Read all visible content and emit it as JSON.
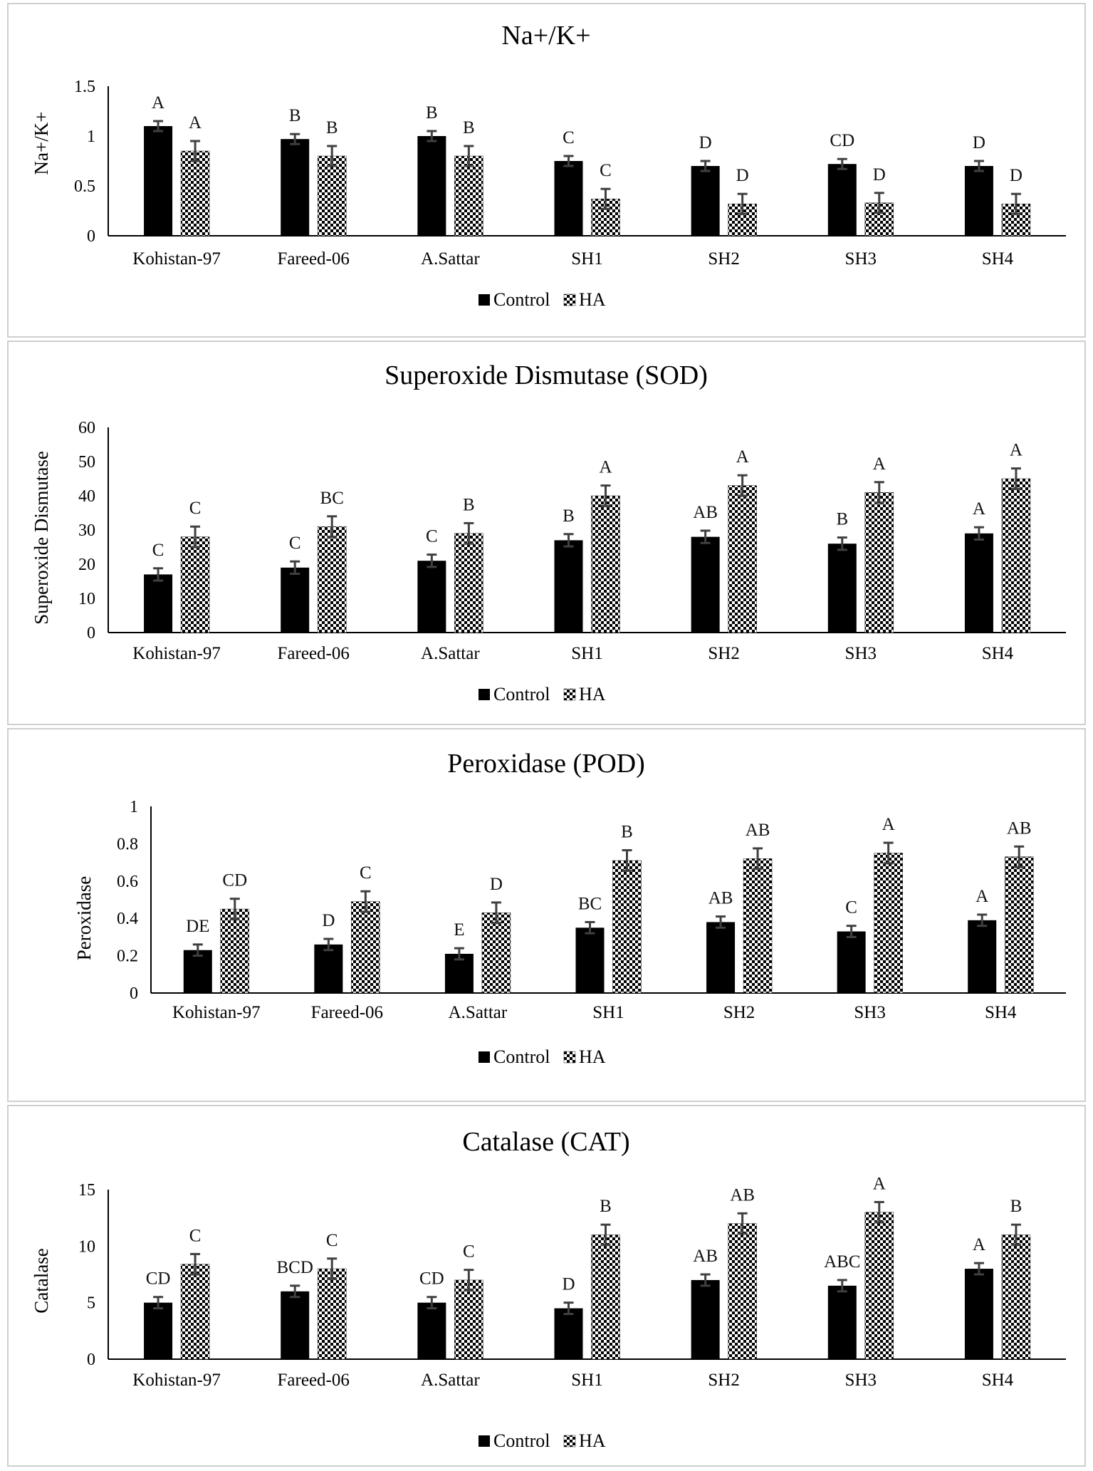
{
  "legend": {
    "control": "Control",
    "ha": "HA"
  },
  "colors": {
    "control": "#000000",
    "ha_dark": "#000000",
    "ha_light": "#ffffff",
    "error": "#404040",
    "axis": "#000000"
  },
  "chart_data": [
    {
      "type": "bar",
      "title": "Na+/K+",
      "ylabel": "Na+/K+",
      "xlabel": "",
      "ylim": [
        0,
        1.5
      ],
      "yticks": [
        "0",
        "0.5",
        "1",
        "1.5"
      ],
      "categories": [
        "Kohistan-97",
        "Fareed-06",
        "A.Sattar",
        "SH1",
        "SH2",
        "SH3",
        "SH4"
      ],
      "series": [
        {
          "name": "Control",
          "values": [
            1.1,
            0.97,
            1.0,
            0.75,
            0.7,
            0.72,
            0.7
          ],
          "errors": [
            0.05,
            0.05,
            0.05,
            0.05,
            0.05,
            0.05,
            0.05
          ],
          "labels": [
            "A",
            "B",
            "B",
            "C",
            "D",
            "CD",
            "D"
          ]
        },
        {
          "name": "HA",
          "values": [
            0.85,
            0.8,
            0.8,
            0.37,
            0.32,
            0.33,
            0.32
          ],
          "errors": [
            0.1,
            0.1,
            0.1,
            0.1,
            0.1,
            0.1,
            0.1
          ],
          "labels": [
            "A",
            "B",
            "B",
            "C",
            "D",
            "D",
            "D"
          ]
        }
      ]
    },
    {
      "type": "bar",
      "title": "Superoxide Dismutase (SOD)",
      "ylabel": "Superoxide Dismutase",
      "xlabel": "",
      "ylim": [
        0,
        60
      ],
      "yticks": [
        "0",
        "10",
        "20",
        "30",
        "40",
        "50",
        "60"
      ],
      "categories": [
        "Kohistan-97",
        "Fareed-06",
        "A.Sattar",
        "SH1",
        "SH2",
        "SH3",
        "SH4"
      ],
      "series": [
        {
          "name": "Control",
          "values": [
            17,
            19,
            21,
            27,
            28,
            26,
            29
          ],
          "errors": [
            1.8,
            1.8,
            1.8,
            1.8,
            1.8,
            1.8,
            1.8
          ],
          "labels": [
            "C",
            "C",
            "C",
            "B",
            "AB",
            "B",
            "A"
          ]
        },
        {
          "name": "HA",
          "values": [
            28,
            31,
            29,
            40,
            43,
            41,
            45
          ],
          "errors": [
            3,
            3,
            3,
            3,
            3,
            3,
            3
          ],
          "labels": [
            "C",
            "BC",
            "B",
            "A",
            "A",
            "A",
            "A"
          ]
        }
      ]
    },
    {
      "type": "bar",
      "title": "Peroxidase (POD)",
      "ylabel": "Peroxidase",
      "xlabel": "",
      "ylim": [
        0,
        1
      ],
      "yticks": [
        "0",
        "0.2",
        "0.4",
        "0.6",
        "0.8",
        "1"
      ],
      "categories": [
        "Kohistan-97",
        "Fareed-06",
        "A.Sattar",
        "SH1",
        "SH2",
        "SH3",
        "SH4"
      ],
      "series": [
        {
          "name": "Control",
          "values": [
            0.23,
            0.26,
            0.21,
            0.35,
            0.38,
            0.33,
            0.39
          ],
          "errors": [
            0.03,
            0.03,
            0.03,
            0.03,
            0.03,
            0.03,
            0.03
          ],
          "labels": [
            "DE",
            "D",
            "E",
            "BC",
            "AB",
            "C",
            "A"
          ]
        },
        {
          "name": "HA",
          "values": [
            0.45,
            0.49,
            0.43,
            0.71,
            0.72,
            0.75,
            0.73
          ],
          "errors": [
            0.055,
            0.055,
            0.055,
            0.055,
            0.055,
            0.055,
            0.055
          ],
          "labels": [
            "CD",
            "C",
            "D",
            "B",
            "AB",
            "A",
            "AB"
          ]
        }
      ]
    },
    {
      "type": "bar",
      "title": "Catalase (CAT)",
      "ylabel": "Catalase",
      "xlabel": "",
      "ylim": [
        0,
        15
      ],
      "yticks": [
        "0",
        "5",
        "10",
        "15"
      ],
      "categories": [
        "Kohistan-97",
        "Fareed-06",
        "A.Sattar",
        "SH1",
        "SH2",
        "SH3",
        "SH4"
      ],
      "series": [
        {
          "name": "Control",
          "values": [
            5,
            6,
            5,
            4.5,
            7,
            6.5,
            8
          ],
          "errors": [
            0.5,
            0.5,
            0.5,
            0.5,
            0.5,
            0.5,
            0.5
          ],
          "labels": [
            "CD",
            "BCD",
            "CD",
            "D",
            "AB",
            "ABC",
            "A"
          ]
        },
        {
          "name": "HA",
          "values": [
            8.4,
            8.0,
            7.0,
            11.0,
            12.0,
            13.0,
            11.0
          ],
          "errors": [
            0.9,
            0.9,
            0.9,
            0.9,
            0.9,
            0.9,
            0.9
          ],
          "labels": [
            "C",
            "C",
            "C",
            "B",
            "AB",
            "A",
            "B"
          ]
        }
      ]
    }
  ]
}
